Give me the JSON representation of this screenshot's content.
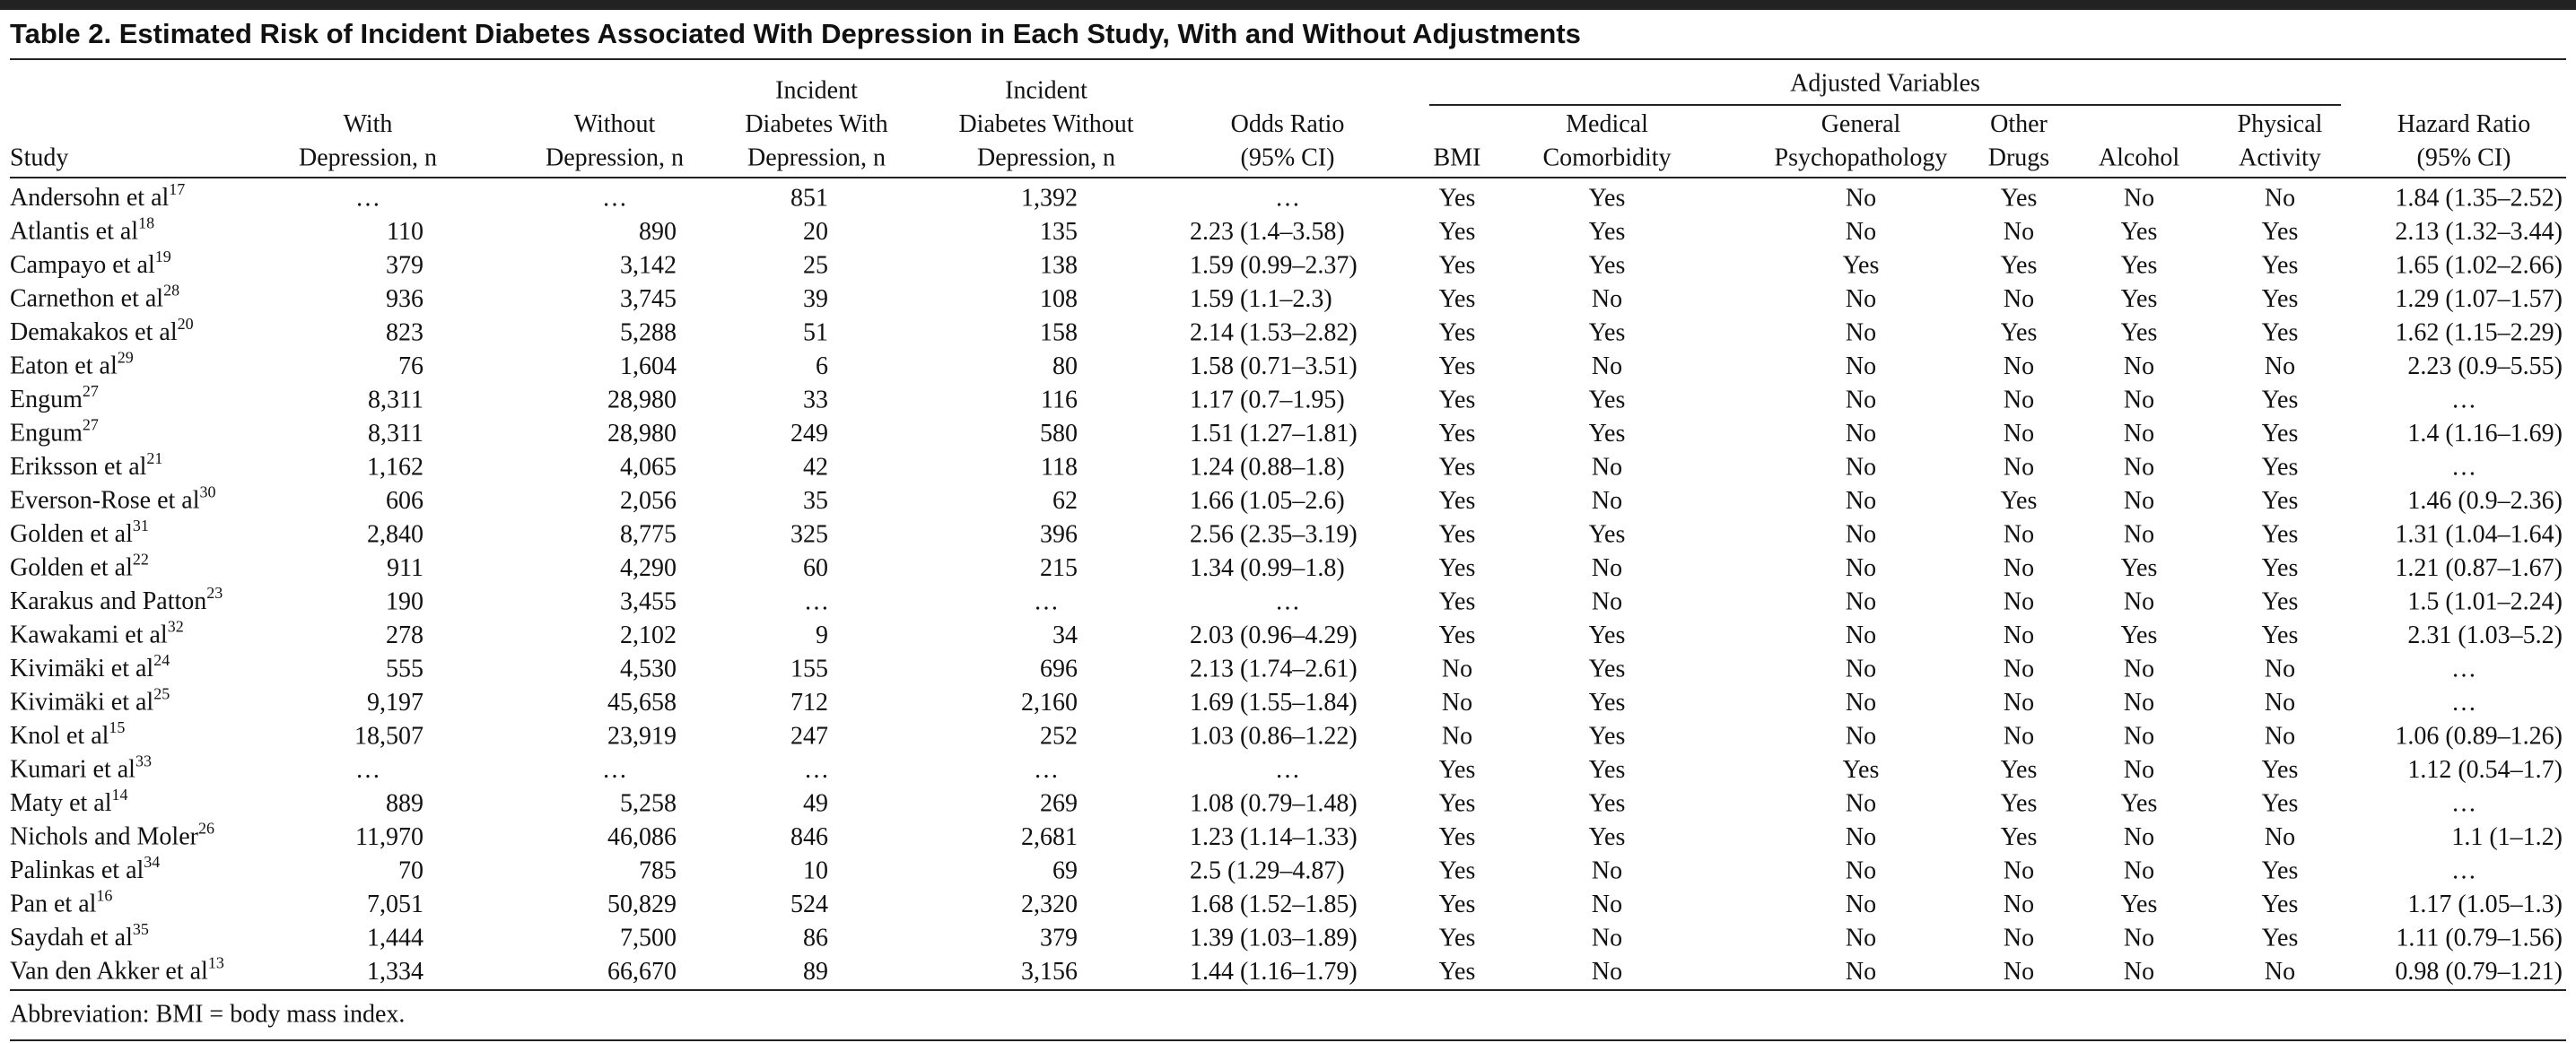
{
  "title": "Table 2. Estimated Risk of Incident Diabetes Associated With Depression in Each Study, With and Without Adjustments",
  "table": {
    "group_header": "Adjusted Variables",
    "columns": [
      [
        "Study"
      ],
      [
        "With",
        "Depression, n"
      ],
      [
        "Without",
        "Depression, n"
      ],
      [
        "Incident",
        "Diabetes With",
        "Depression, n"
      ],
      [
        "Incident",
        "Diabetes Without",
        "Depression, n"
      ],
      [
        "Odds Ratio",
        "(95% CI)"
      ],
      [
        "BMI"
      ],
      [
        "Medical",
        "Comorbidity"
      ],
      [
        "General",
        "Psychopathology"
      ],
      [
        "Other",
        "Drugs"
      ],
      [
        "Alcohol"
      ],
      [
        "Physical",
        "Activity"
      ],
      [
        "Hazard Ratio",
        "(95% CI)"
      ]
    ],
    "rows": [
      {
        "study": "Andersohn et al",
        "ref": "17",
        "cells": [
          "…",
          "…",
          "851",
          "1,392",
          "…",
          "Yes",
          "Yes",
          "No",
          "Yes",
          "No",
          "No",
          "1.84 (1.35–2.52)"
        ]
      },
      {
        "study": "Atlantis et al",
        "ref": "18",
        "cells": [
          "110",
          "890",
          "20",
          "135",
          "2.23 (1.4–3.58)",
          "Yes",
          "Yes",
          "No",
          "No",
          "Yes",
          "Yes",
          "2.13 (1.32–3.44)"
        ]
      },
      {
        "study": "Campayo et al",
        "ref": "19",
        "cells": [
          "379",
          "3,142",
          "25",
          "138",
          "1.59 (0.99–2.37)",
          "Yes",
          "Yes",
          "Yes",
          "Yes",
          "Yes",
          "Yes",
          "1.65 (1.02–2.66)"
        ]
      },
      {
        "study": "Carnethon et al",
        "ref": "28",
        "cells": [
          "936",
          "3,745",
          "39",
          "108",
          "1.59 (1.1–2.3)",
          "Yes",
          "No",
          "No",
          "No",
          "Yes",
          "Yes",
          "1.29 (1.07–1.57)"
        ]
      },
      {
        "study": "Demakakos et al",
        "ref": "20",
        "cells": [
          "823",
          "5,288",
          "51",
          "158",
          "2.14 (1.53–2.82)",
          "Yes",
          "Yes",
          "No",
          "Yes",
          "Yes",
          "Yes",
          "1.62 (1.15–2.29)"
        ]
      },
      {
        "study": "Eaton et al",
        "ref": "29",
        "cells": [
          "76",
          "1,604",
          "6",
          "80",
          "1.58 (0.71–3.51)",
          "Yes",
          "No",
          "No",
          "No",
          "No",
          "No",
          "2.23 (0.9–5.55)"
        ]
      },
      {
        "study": "Engum",
        "ref": "27",
        "cells": [
          "8,311",
          "28,980",
          "33",
          "116",
          "1.17 (0.7–1.95)",
          "Yes",
          "Yes",
          "No",
          "No",
          "No",
          "Yes",
          "…"
        ]
      },
      {
        "study": "Engum",
        "ref": "27",
        "cells": [
          "8,311",
          "28,980",
          "249",
          "580",
          "1.51 (1.27–1.81)",
          "Yes",
          "Yes",
          "No",
          "No",
          "No",
          "Yes",
          "1.4 (1.16–1.69)"
        ]
      },
      {
        "study": "Eriksson et al",
        "ref": "21",
        "cells": [
          "1,162",
          "4,065",
          "42",
          "118",
          "1.24 (0.88–1.8)",
          "Yes",
          "No",
          "No",
          "No",
          "No",
          "Yes",
          "…"
        ]
      },
      {
        "study": "Everson-Rose et al",
        "ref": "30",
        "cells": [
          "606",
          "2,056",
          "35",
          "62",
          "1.66 (1.05–2.6)",
          "Yes",
          "No",
          "No",
          "Yes",
          "No",
          "Yes",
          "1.46 (0.9–2.36)"
        ]
      },
      {
        "study": "Golden et al",
        "ref": "31",
        "cells": [
          "2,840",
          "8,775",
          "325",
          "396",
          "2.56 (2.35–3.19)",
          "Yes",
          "Yes",
          "No",
          "No",
          "No",
          "Yes",
          "1.31 (1.04–1.64)"
        ]
      },
      {
        "study": "Golden et al",
        "ref": "22",
        "cells": [
          "911",
          "4,290",
          "60",
          "215",
          "1.34 (0.99–1.8)",
          "Yes",
          "No",
          "No",
          "No",
          "Yes",
          "Yes",
          "1.21 (0.87–1.67)"
        ]
      },
      {
        "study": "Karakus and Patton",
        "ref": "23",
        "cells": [
          "190",
          "3,455",
          "…",
          "…",
          "…",
          "Yes",
          "No",
          "No",
          "No",
          "No",
          "Yes",
          "1.5 (1.01–2.24)"
        ]
      },
      {
        "study": "Kawakami et al",
        "ref": "32",
        "cells": [
          "278",
          "2,102",
          "9",
          "34",
          "2.03 (0.96–4.29)",
          "Yes",
          "Yes",
          "No",
          "No",
          "Yes",
          "Yes",
          "2.31 (1.03–5.2)"
        ]
      },
      {
        "study": "Kivimäki et al",
        "ref": "24",
        "cells": [
          "555",
          "4,530",
          "155",
          "696",
          "2.13 (1.74–2.61)",
          "No",
          "Yes",
          "No",
          "No",
          "No",
          "No",
          "…"
        ]
      },
      {
        "study": "Kivimäki et al",
        "ref": "25",
        "cells": [
          "9,197",
          "45,658",
          "712",
          "2,160",
          "1.69 (1.55–1.84)",
          "No",
          "Yes",
          "No",
          "No",
          "No",
          "No",
          "…"
        ]
      },
      {
        "study": "Knol et al",
        "ref": "15",
        "cells": [
          "18,507",
          "23,919",
          "247",
          "252",
          "1.03 (0.86–1.22)",
          "No",
          "Yes",
          "No",
          "No",
          "No",
          "No",
          "1.06 (0.89–1.26)"
        ]
      },
      {
        "study": "Kumari et al",
        "ref": "33",
        "cells": [
          "…",
          "…",
          "…",
          "…",
          "…",
          "Yes",
          "Yes",
          "Yes",
          "Yes",
          "No",
          "Yes",
          "1.12 (0.54–1.7)"
        ]
      },
      {
        "study": "Maty et al",
        "ref": "14",
        "cells": [
          "889",
          "5,258",
          "49",
          "269",
          "1.08 (0.79–1.48)",
          "Yes",
          "Yes",
          "No",
          "Yes",
          "Yes",
          "Yes",
          "…"
        ]
      },
      {
        "study": "Nichols and Moler",
        "ref": "26",
        "cells": [
          "11,970",
          "46,086",
          "846",
          "2,681",
          "1.23 (1.14–1.33)",
          "Yes",
          "Yes",
          "No",
          "Yes",
          "No",
          "No",
          "1.1 (1–1.2)"
        ]
      },
      {
        "study": "Palinkas et al",
        "ref": "34",
        "cells": [
          "70",
          "785",
          "10",
          "69",
          "2.5 (1.29–4.87)",
          "Yes",
          "No",
          "No",
          "No",
          "No",
          "Yes",
          "…"
        ]
      },
      {
        "study": "Pan et al",
        "ref": "16",
        "cells": [
          "7,051",
          "50,829",
          "524",
          "2,320",
          "1.68 (1.52–1.85)",
          "Yes",
          "No",
          "No",
          "No",
          "Yes",
          "Yes",
          "1.17 (1.05–1.3)"
        ]
      },
      {
        "study": "Saydah et al",
        "ref": "35",
        "cells": [
          "1,444",
          "7,500",
          "86",
          "379",
          "1.39 (1.03–1.89)",
          "Yes",
          "No",
          "No",
          "No",
          "No",
          "Yes",
          "1.11 (0.79–1.56)"
        ]
      },
      {
        "study": "Van den Akker et al",
        "ref": "13",
        "cells": [
          "1,334",
          "66,670",
          "89",
          "3,156",
          "1.44 (1.16–1.79)",
          "Yes",
          "No",
          "No",
          "No",
          "No",
          "No",
          "0.98 (0.79–1.21)"
        ]
      }
    ]
  },
  "footnote": "Abbreviation: BMI = body mass index."
}
